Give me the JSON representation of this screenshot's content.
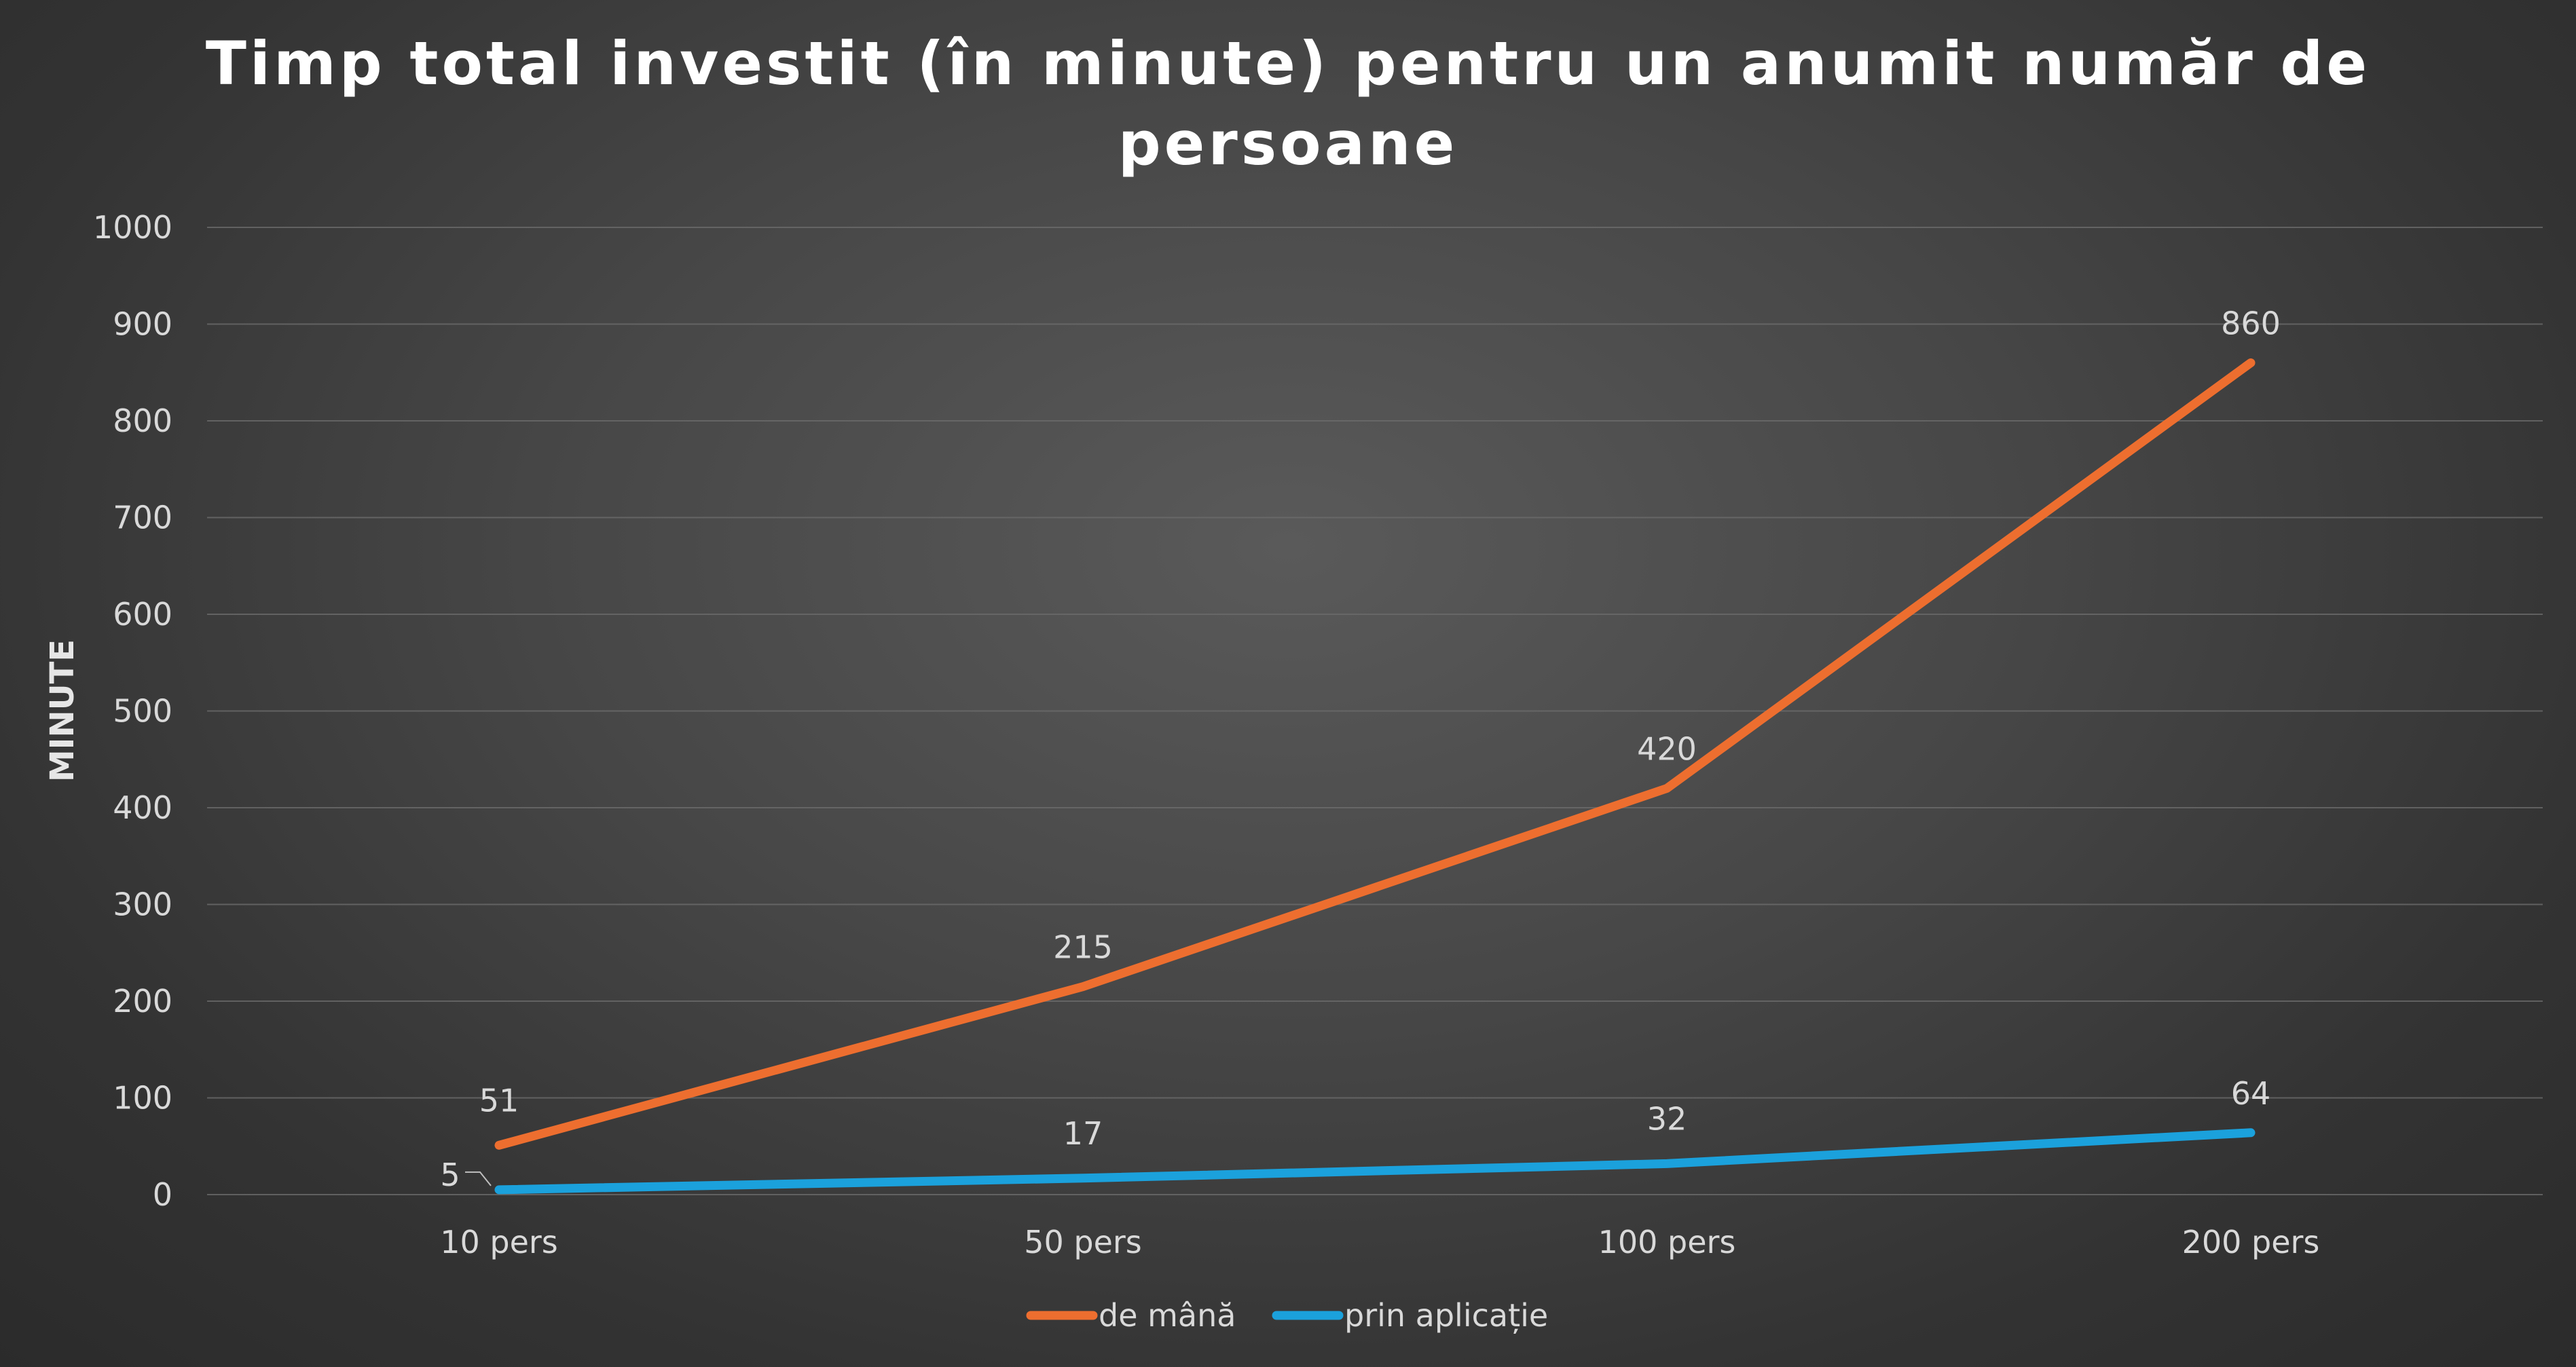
{
  "chart_data": {
    "type": "line",
    "title_lines": [
      "Timp total investit (în minute) pentru un anumit număr de",
      "persoane"
    ],
    "xlabel": "",
    "ylabel": "MINUTE",
    "categories": [
      "10 pers",
      "50 pers",
      "100 pers",
      "200 pers"
    ],
    "ylim": [
      0,
      1000
    ],
    "yticks": [
      "0",
      "100",
      "200",
      "300",
      "400",
      "500",
      "600",
      "700",
      "800",
      "900",
      "1000"
    ],
    "grid": true,
    "legend_position": "bottom",
    "series": [
      {
        "name": "de mână",
        "values": [
          51,
          215,
          420,
          860
        ],
        "labels": [
          "51",
          "215",
          "420",
          "860"
        ],
        "color": "#ed6e2f"
      },
      {
        "name": "prin aplicație",
        "values": [
          5,
          17,
          32,
          64
        ],
        "labels": [
          "5",
          "17",
          "32",
          "64"
        ],
        "color": "#1ba1dc"
      }
    ]
  }
}
